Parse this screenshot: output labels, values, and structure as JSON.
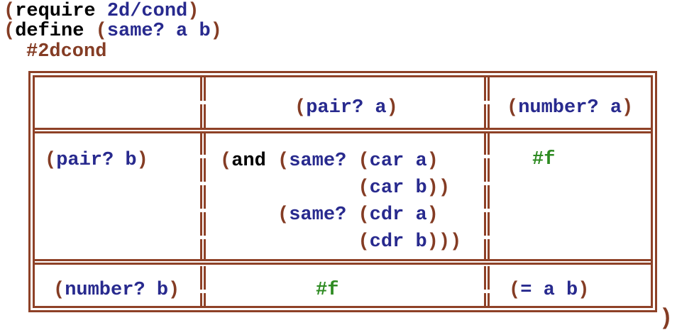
{
  "colors": {
    "brown": "#843c24",
    "border": "#8e4127",
    "blue": "#282a8e",
    "green": "#2e8b22",
    "keyword": "#000000"
  },
  "editor": {
    "require_line": [
      {
        "t": "(",
        "c": "paren"
      },
      {
        "t": "require",
        "c": "kw"
      },
      {
        "t": " ",
        "c": "plain"
      },
      {
        "t": "2d/cond",
        "c": "id"
      },
      {
        "t": ")",
        "c": "paren"
      }
    ],
    "define_line": [
      {
        "t": "(",
        "c": "paren"
      },
      {
        "t": "define",
        "c": "kw"
      },
      {
        "t": " ",
        "c": "plain"
      },
      {
        "t": "(",
        "c": "paren"
      },
      {
        "t": "same? a b",
        "c": "id"
      },
      {
        "t": ")",
        "c": "paren"
      }
    ],
    "hashlang_line": [
      {
        "t": "#2dcond",
        "c": "hash"
      }
    ],
    "closing_paren": [
      {
        "t": ")",
        "c": "paren"
      }
    ]
  },
  "table": {
    "header": {
      "pair_a": [
        {
          "t": "(",
          "c": "paren"
        },
        {
          "t": "pair? a",
          "c": "id"
        },
        {
          "t": ")",
          "c": "paren"
        }
      ],
      "number_a": [
        {
          "t": "(",
          "c": "paren"
        },
        {
          "t": "number? a",
          "c": "id"
        },
        {
          "t": ")",
          "c": "paren"
        }
      ]
    },
    "row_pair_b": {
      "label": [
        {
          "t": "(",
          "c": "paren"
        },
        {
          "t": "pair? b",
          "c": "id"
        },
        {
          "t": ")",
          "c": "paren"
        }
      ],
      "and_expr": [
        {
          "t": "(",
          "c": "paren"
        },
        {
          "t": "and",
          "c": "kw"
        },
        {
          "t": " ",
          "c": "plain"
        },
        {
          "t": "(",
          "c": "paren"
        },
        {
          "t": "same?",
          "c": "id"
        },
        {
          "t": " ",
          "c": "plain"
        },
        {
          "t": "(",
          "c": "paren"
        },
        {
          "t": "car a",
          "c": "id"
        },
        {
          "t": ")",
          "c": "paren"
        },
        {
          "t": "\n            ",
          "c": "plain"
        },
        {
          "t": "(",
          "c": "paren"
        },
        {
          "t": "car b",
          "c": "id"
        },
        {
          "t": "))",
          "c": "paren"
        },
        {
          "t": "\n     ",
          "c": "plain"
        },
        {
          "t": "(",
          "c": "paren"
        },
        {
          "t": "same?",
          "c": "id"
        },
        {
          "t": " ",
          "c": "plain"
        },
        {
          "t": "(",
          "c": "paren"
        },
        {
          "t": "cdr a",
          "c": "id"
        },
        {
          "t": ")",
          "c": "paren"
        },
        {
          "t": "\n            ",
          "c": "plain"
        },
        {
          "t": "(",
          "c": "paren"
        },
        {
          "t": "cdr b",
          "c": "id"
        },
        {
          "t": ")))",
          "c": "paren"
        }
      ],
      "false_val": [
        {
          "t": "#f",
          "c": "const"
        }
      ]
    },
    "row_number_b": {
      "label": [
        {
          "t": "(",
          "c": "paren"
        },
        {
          "t": "number? b",
          "c": "id"
        },
        {
          "t": ")",
          "c": "paren"
        }
      ],
      "false_val": [
        {
          "t": "#f",
          "c": "const"
        }
      ],
      "eq_expr": [
        {
          "t": "(",
          "c": "paren"
        },
        {
          "t": "= a b",
          "c": "id"
        },
        {
          "t": ")",
          "c": "paren"
        }
      ]
    }
  }
}
